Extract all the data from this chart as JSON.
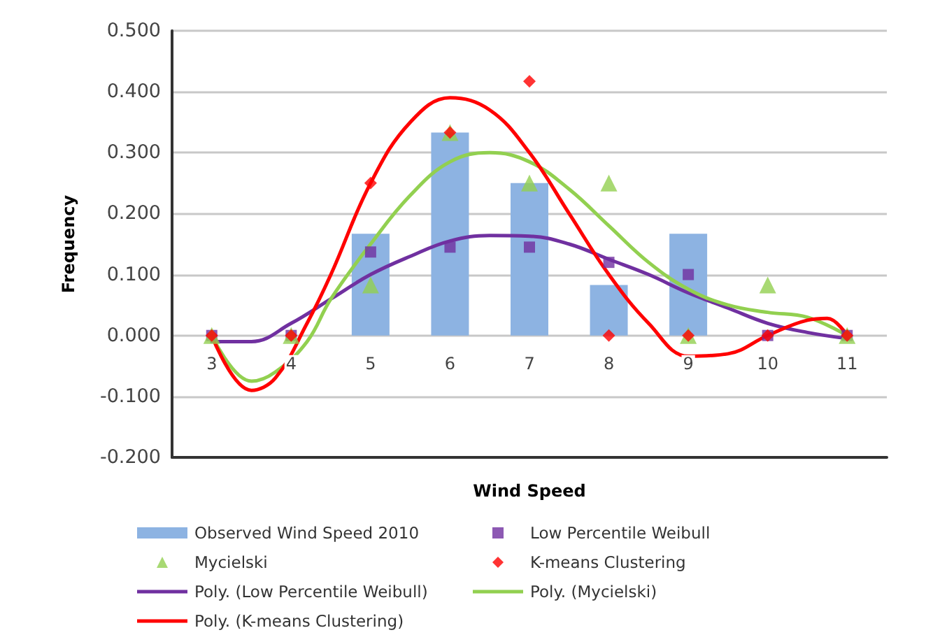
{
  "chart_data": {
    "type": "bar",
    "xlabel": "Wind Speed",
    "ylabel": "Frequency",
    "x": [
      3,
      4,
      5,
      6,
      7,
      8,
      9,
      10,
      11
    ],
    "xlim": [
      2.5,
      11.5
    ],
    "xticks": [
      3,
      4,
      5,
      6,
      7,
      8,
      9,
      10,
      11
    ],
    "series": [
      {
        "name": "Observed Wind Speed 2010",
        "color": "#8db3e2",
        "values": [
          0,
          0,
          0.167,
          0.333,
          0.25,
          0.083,
          0.167,
          0,
          0
        ]
      },
      {
        "name": "Low Percentile Weibull",
        "type": "scatter",
        "marker": "square",
        "color": "#7030a0",
        "values": [
          0,
          0,
          0.137,
          0.145,
          0.145,
          0.12,
          0.1,
          0,
          0
        ]
      },
      {
        "name": "Mycielski",
        "type": "scatter",
        "marker": "triangle",
        "color": "#92d050",
        "values": [
          0,
          0,
          0.083,
          0.333,
          0.25,
          0.25,
          0,
          0.083,
          0
        ]
      },
      {
        "name": "K-means Clustering",
        "type": "scatter",
        "marker": "diamond",
        "color": "#ff0000",
        "values": [
          0,
          0,
          0.25,
          0.333,
          0.417,
          0,
          0,
          0,
          0
        ]
      },
      {
        "name": "Poly. (Low Percentile Weibull)",
        "type": "line",
        "color": "#7030a0",
        "x": [
          3,
          3.5,
          4,
          4.5,
          5,
          5.5,
          6,
          6.5,
          7,
          7.5,
          8,
          8.5,
          9,
          9.5,
          10,
          10.5,
          11
        ],
        "values": [
          -0.01,
          -0.01,
          0.02,
          0.06,
          0.1,
          0.13,
          0.155,
          0.164,
          0.163,
          0.15,
          0.125,
          0.1,
          0.07,
          0.045,
          0.02,
          0.005,
          -0.005
        ]
      },
      {
        "name": "Poly. (Mycielski)",
        "type": "line",
        "color": "#92d050",
        "x": [
          3,
          3.5,
          3.8,
          4.2,
          4.5,
          5,
          5.5,
          6,
          6.5,
          7,
          7.5,
          8,
          8.5,
          9,
          9.5,
          10,
          10.5,
          11
        ],
        "values": [
          0,
          -0.075,
          -0.06,
          -0.01,
          0.06,
          0.15,
          0.23,
          0.285,
          0.3,
          0.285,
          0.24,
          0.18,
          0.12,
          0.076,
          0.05,
          0.038,
          0.03,
          0
        ]
      },
      {
        "name": "Poly. (K-means Clustering)",
        "type": "line",
        "color": "#ff0000",
        "x": [
          3,
          3.5,
          3.8,
          4.2,
          4.5,
          5,
          5.5,
          6,
          6.5,
          7,
          7.5,
          8,
          8.5,
          9,
          9.5,
          10,
          10.5,
          10.75,
          11
        ],
        "values": [
          0,
          -0.09,
          -0.07,
          0.02,
          0.1,
          0.25,
          0.35,
          0.39,
          0.37,
          0.3,
          0.2,
          0.1,
          0.02,
          -0.034,
          -0.03,
          0,
          0.025,
          0.028,
          0
        ]
      }
    ],
    "ylim": [
      -0.2,
      0.5
    ],
    "yticks": [
      {
        "value": -0.2,
        "label": "-0.200"
      },
      {
        "value": -0.1,
        "label": "-0.100"
      },
      {
        "value": 0,
        "label": "0.000"
      },
      {
        "value": 0.1,
        "label": "0.100"
      },
      {
        "value": 0.2,
        "label": "0.200"
      },
      {
        "value": 0.3,
        "label": "0.300"
      },
      {
        "value": 0.4,
        "label": "0.400"
      },
      {
        "value": 0.5,
        "label": "0.500"
      }
    ],
    "grid": "y",
    "legend": "bottom",
    "line_style": "solid"
  }
}
